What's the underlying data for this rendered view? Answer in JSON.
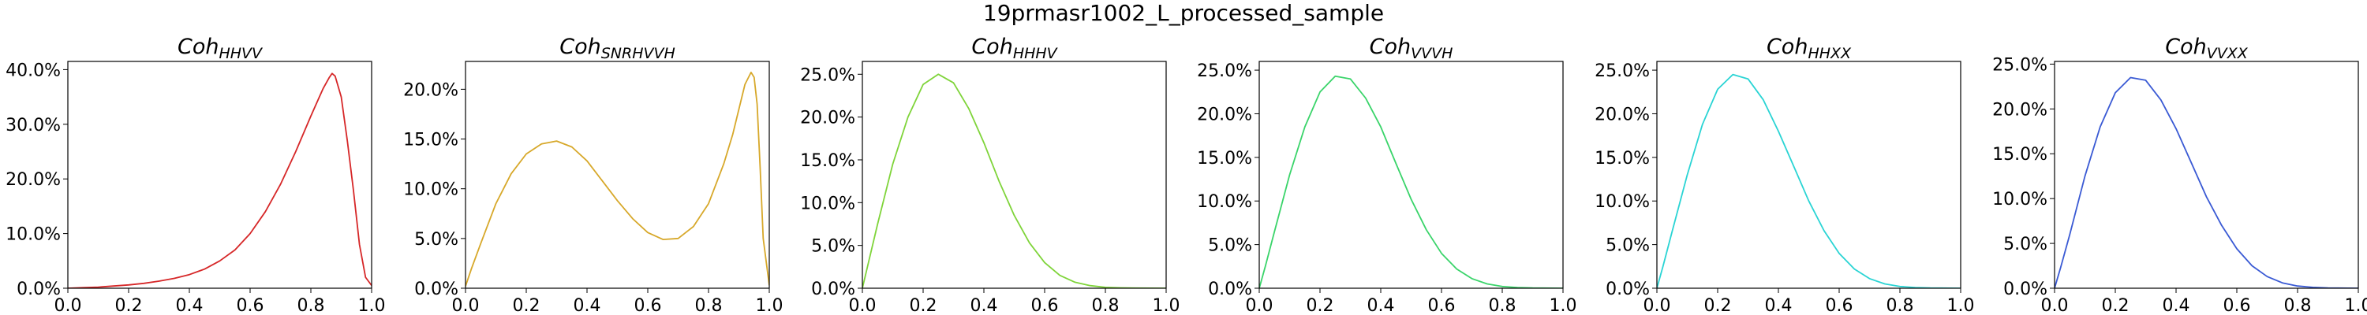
{
  "figure": {
    "suptitle": "19prmasr1002_L_processed_sample"
  },
  "chart_data": [
    {
      "type": "line",
      "title_main": "Coh",
      "title_sub": "HHVV",
      "color": "#d62728",
      "xlim": [
        0,
        1
      ],
      "ylim": [
        0,
        41.5
      ],
      "xticks": [
        "0.0",
        "0.2",
        "0.4",
        "0.6",
        "0.8",
        "1.0"
      ],
      "yticks": [
        {
          "value": 0,
          "label": "0.0%"
        },
        {
          "value": 10,
          "label": "10.0%"
        },
        {
          "value": 20,
          "label": "20.0%"
        },
        {
          "value": 30,
          "label": "30.0%"
        },
        {
          "value": 40,
          "label": "40.0%"
        }
      ],
      "series": [
        {
          "x": [
            0.0,
            0.05,
            0.1,
            0.15,
            0.2,
            0.25,
            0.3,
            0.35,
            0.4,
            0.45,
            0.5,
            0.55,
            0.6,
            0.65,
            0.7,
            0.75,
            0.8,
            0.82,
            0.84,
            0.86,
            0.87,
            0.88,
            0.9,
            0.92,
            0.94,
            0.96,
            0.98,
            1.0
          ],
          "y": [
            0,
            0.1,
            0.2,
            0.4,
            0.6,
            0.9,
            1.3,
            1.8,
            2.5,
            3.5,
            5.0,
            7.0,
            10.0,
            14.0,
            19.0,
            25.0,
            31.5,
            34.0,
            36.5,
            38.5,
            39.3,
            38.8,
            35.0,
            27.0,
            18.0,
            8.0,
            2.0,
            0.5
          ]
        }
      ]
    },
    {
      "type": "line",
      "title_main": "Coh",
      "title_sub": "SNRHVVH",
      "color": "#d7a82a",
      "xlim": [
        0,
        1
      ],
      "ylim": [
        0,
        22.8
      ],
      "xticks": [
        "0.0",
        "0.2",
        "0.4",
        "0.6",
        "0.8",
        "1.0"
      ],
      "yticks": [
        {
          "value": 0,
          "label": "0.0%"
        },
        {
          "value": 5,
          "label": "5.0%"
        },
        {
          "value": 10,
          "label": "10.0%"
        },
        {
          "value": 15,
          "label": "15.0%"
        },
        {
          "value": 20,
          "label": "20.0%"
        }
      ],
      "series": [
        {
          "x": [
            0.0,
            0.02,
            0.05,
            0.1,
            0.15,
            0.2,
            0.25,
            0.3,
            0.35,
            0.4,
            0.45,
            0.5,
            0.55,
            0.6,
            0.65,
            0.7,
            0.75,
            0.8,
            0.85,
            0.88,
            0.9,
            0.92,
            0.94,
            0.95,
            0.96,
            0.97,
            0.98,
            1.0
          ],
          "y": [
            0.2,
            2.0,
            4.5,
            8.5,
            11.5,
            13.5,
            14.5,
            14.8,
            14.2,
            12.8,
            10.8,
            8.8,
            7.0,
            5.6,
            4.9,
            5.0,
            6.2,
            8.5,
            12.5,
            15.5,
            18.0,
            20.5,
            21.7,
            21.2,
            18.5,
            12.0,
            5.0,
            0.3
          ]
        }
      ]
    },
    {
      "type": "line",
      "title_main": "Coh",
      "title_sub": "HHHV",
      "color": "#7fd43a",
      "xlim": [
        0,
        1
      ],
      "ylim": [
        0,
        26.5
      ],
      "xticks": [
        "0.0",
        "0.2",
        "0.4",
        "0.6",
        "0.8",
        "1.0"
      ],
      "yticks": [
        {
          "value": 0,
          "label": "0.0%"
        },
        {
          "value": 5,
          "label": "5.0%"
        },
        {
          "value": 10,
          "label": "10.0%"
        },
        {
          "value": 15,
          "label": "15.0%"
        },
        {
          "value": 20,
          "label": "20.0%"
        },
        {
          "value": 25,
          "label": "25.0%"
        }
      ],
      "series": [
        {
          "x": [
            0.0,
            0.02,
            0.05,
            0.1,
            0.15,
            0.2,
            0.25,
            0.3,
            0.35,
            0.4,
            0.45,
            0.5,
            0.55,
            0.6,
            0.65,
            0.7,
            0.75,
            0.8,
            0.85,
            0.9,
            1.0
          ],
          "y": [
            0,
            3.0,
            7.5,
            14.5,
            20.0,
            23.8,
            25.0,
            24.0,
            21.0,
            17.0,
            12.5,
            8.5,
            5.3,
            3.0,
            1.5,
            0.7,
            0.3,
            0.1,
            0.05,
            0.02,
            0
          ]
        }
      ]
    },
    {
      "type": "line",
      "title_main": "Coh",
      "title_sub": "VVVH",
      "color": "#3ad46a",
      "xlim": [
        0,
        1
      ],
      "ylim": [
        0,
        26.0
      ],
      "xticks": [
        "0.0",
        "0.2",
        "0.4",
        "0.6",
        "0.8",
        "1.0"
      ],
      "yticks": [
        {
          "value": 0,
          "label": "0.0%"
        },
        {
          "value": 5,
          "label": "5.0%"
        },
        {
          "value": 10,
          "label": "10.0%"
        },
        {
          "value": 15,
          "label": "15.0%"
        },
        {
          "value": 20,
          "label": "20.0%"
        },
        {
          "value": 25,
          "label": "25.0%"
        }
      ],
      "series": [
        {
          "x": [
            0.0,
            0.02,
            0.05,
            0.1,
            0.15,
            0.2,
            0.25,
            0.3,
            0.35,
            0.4,
            0.45,
            0.5,
            0.55,
            0.6,
            0.65,
            0.7,
            0.75,
            0.8,
            0.85,
            0.9,
            1.0
          ],
          "y": [
            0,
            2.5,
            6.5,
            13.0,
            18.5,
            22.5,
            24.3,
            24.0,
            21.8,
            18.5,
            14.3,
            10.2,
            6.7,
            4.0,
            2.2,
            1.1,
            0.5,
            0.2,
            0.08,
            0.03,
            0
          ]
        }
      ]
    },
    {
      "type": "line",
      "title_main": "Coh",
      "title_sub": "HHXX",
      "color": "#2ad4d4",
      "xlim": [
        0,
        1
      ],
      "ylim": [
        0,
        26.0
      ],
      "xticks": [
        "0.0",
        "0.2",
        "0.4",
        "0.6",
        "0.8",
        "1.0"
      ],
      "yticks": [
        {
          "value": 0,
          "label": "0.0%"
        },
        {
          "value": 5,
          "label": "5.0%"
        },
        {
          "value": 10,
          "label": "10.0%"
        },
        {
          "value": 15,
          "label": "15.0%"
        },
        {
          "value": 20,
          "label": "20.0%"
        },
        {
          "value": 25,
          "label": "25.0%"
        }
      ],
      "series": [
        {
          "x": [
            0.0,
            0.02,
            0.05,
            0.1,
            0.15,
            0.2,
            0.25,
            0.3,
            0.35,
            0.4,
            0.45,
            0.5,
            0.55,
            0.6,
            0.65,
            0.7,
            0.75,
            0.8,
            0.85,
            0.9,
            1.0
          ],
          "y": [
            0,
            2.5,
            6.5,
            13.0,
            18.8,
            22.8,
            24.5,
            24.0,
            21.6,
            18.0,
            14.0,
            10.0,
            6.6,
            4.0,
            2.2,
            1.1,
            0.5,
            0.2,
            0.08,
            0.03,
            0
          ]
        }
      ]
    },
    {
      "type": "line",
      "title_main": "Coh",
      "title_sub": "VVXX",
      "color": "#3a5ad4",
      "xlim": [
        0,
        1
      ],
      "ylim": [
        0,
        25.3
      ],
      "xticks": [
        "0.0",
        "0.2",
        "0.4",
        "0.6",
        "0.8",
        "1.0"
      ],
      "yticks": [
        {
          "value": 0,
          "label": "0.0%"
        },
        {
          "value": 5,
          "label": "5.0%"
        },
        {
          "value": 10,
          "label": "10.0%"
        },
        {
          "value": 15,
          "label": "15.0%"
        },
        {
          "value": 20,
          "label": "20.0%"
        },
        {
          "value": 25,
          "label": "25.0%"
        }
      ],
      "series": [
        {
          "x": [
            0.0,
            0.02,
            0.05,
            0.1,
            0.15,
            0.2,
            0.25,
            0.3,
            0.35,
            0.4,
            0.45,
            0.5,
            0.55,
            0.6,
            0.65,
            0.7,
            0.75,
            0.8,
            0.85,
            0.9,
            1.0
          ],
          "y": [
            0,
            2.3,
            6.0,
            12.5,
            18.0,
            21.8,
            23.5,
            23.2,
            21.0,
            17.8,
            14.0,
            10.2,
            7.0,
            4.4,
            2.5,
            1.3,
            0.6,
            0.25,
            0.1,
            0.03,
            0
          ]
        }
      ]
    }
  ]
}
